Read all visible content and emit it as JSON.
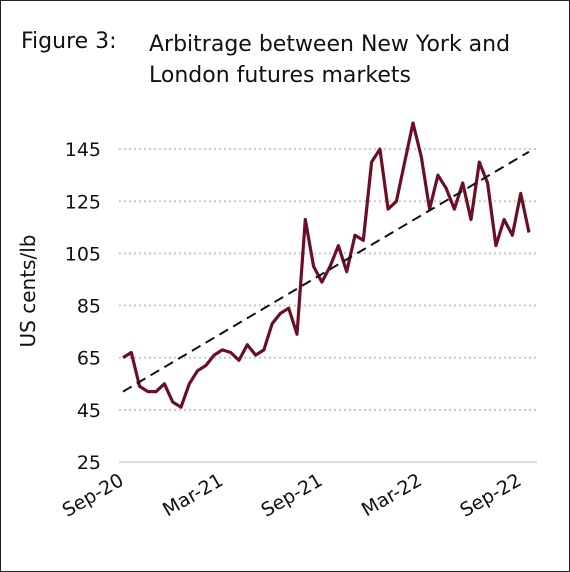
{
  "chart_data": {
    "type": "line",
    "label": "Figure 3:",
    "title": "Arbitrage between New York and London futures markets",
    "ylabel": "US cents/lb",
    "categories": [
      "Sep-20",
      null,
      null,
      null,
      null,
      null,
      null,
      null,
      null,
      null,
      null,
      null,
      "Mar-21",
      null,
      null,
      null,
      null,
      null,
      null,
      null,
      null,
      null,
      null,
      null,
      "Sep-21",
      null,
      null,
      null,
      null,
      null,
      null,
      null,
      null,
      null,
      null,
      null,
      "Mar-22",
      null,
      null,
      null,
      null,
      null,
      null,
      null,
      null,
      null,
      null,
      null,
      "Sep-22",
      null
    ],
    "series": [
      {
        "name": "Arbitrage",
        "color": "#6b0f24",
        "values": [
          65,
          67,
          54,
          52,
          52,
          55,
          48,
          46,
          55,
          60,
          62,
          66,
          68,
          67,
          64,
          70,
          66,
          68,
          78,
          82,
          84,
          74,
          118,
          100,
          94,
          100,
          108,
          98,
          112,
          110,
          140,
          145,
          122,
          125,
          140,
          155,
          142,
          122,
          135,
          130,
          122,
          132,
          118,
          140,
          132,
          108,
          118,
          112,
          128,
          113
        ]
      }
    ],
    "trend": {
      "color": "#111111",
      "values": [
        52,
        144
      ]
    },
    "ylim": [
      25,
      160
    ],
    "yticks": [
      25,
      45,
      65,
      85,
      105,
      125,
      145
    ],
    "grid": true
  }
}
